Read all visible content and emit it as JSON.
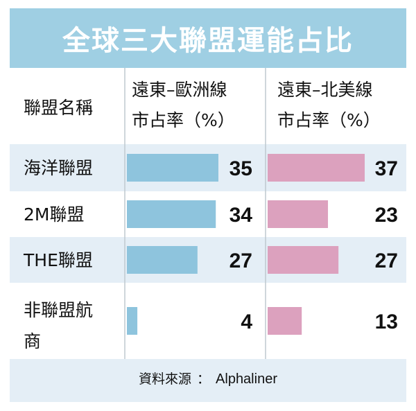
{
  "title": "全球三大聯盟運能占比",
  "source": {
    "label": "資料來源",
    "sep": "：",
    "value": "Alphaliner"
  },
  "chart_data": {
    "type": "bar",
    "table_header": "聯盟名稱",
    "categories": [
      "海洋聯盟",
      "2M聯盟",
      "THE聯盟",
      "非聯盟航商"
    ],
    "category_lines": [
      [
        "海洋聯盟"
      ],
      [
        "2M聯盟"
      ],
      [
        "THE聯盟"
      ],
      [
        "非聯盟航",
        "商"
      ]
    ],
    "series": [
      {
        "name": "遠東–歐洲線市占率（%）",
        "name_lines": [
          "遠東–歐洲線",
          "市占率（%）"
        ],
        "values": [
          35,
          34,
          27,
          4
        ],
        "color": "#8ec4dd"
      },
      {
        "name": "遠東–北美線市占率（%）",
        "name_lines": [
          "遠東–北美線",
          "市占率（%）"
        ],
        "values": [
          37,
          23,
          27,
          13
        ],
        "color": "#dca1be"
      }
    ],
    "xlim": [
      0,
      40
    ],
    "colors": {
      "header_bg": "#9fcfe3",
      "row_stripe": "#e4eef6",
      "text": "#111111"
    }
  }
}
